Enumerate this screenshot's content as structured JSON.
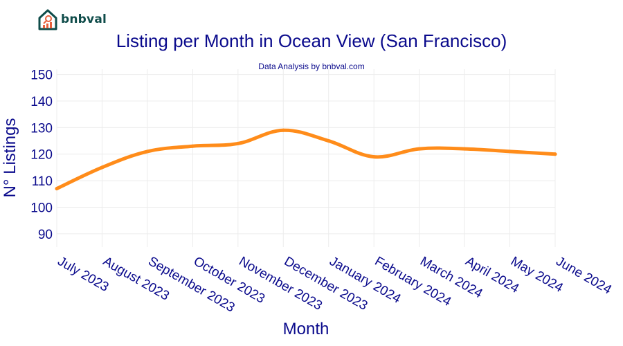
{
  "brand": {
    "name": "bnbval",
    "logo_icon": "house-chart-icon",
    "color": "#0f4c4a",
    "accent": "#e8603c"
  },
  "chart_data": {
    "type": "line",
    "title": "Listing per Month in Ocean View (San Francisco)",
    "subtitle": "Data Analysis by bnbval.com",
    "xlabel": "Month",
    "ylabel": "N° Listings",
    "categories": [
      "July 2023",
      "August 2023",
      "September 2023",
      "October 2023",
      "November 2023",
      "December 2023",
      "January 2024",
      "February 2024",
      "March 2024",
      "April 2024",
      "May 2024",
      "June 2024"
    ],
    "series": [
      {
        "values": [
          107,
          115,
          121,
          123,
          124,
          129,
          125,
          119,
          122,
          122,
          121,
          120
        ],
        "color": "#ff8c1a"
      }
    ],
    "ylim": [
      85,
      152
    ],
    "yticks": [
      90,
      100,
      110,
      120,
      130,
      140,
      150
    ],
    "grid": true,
    "smooth": true
  }
}
